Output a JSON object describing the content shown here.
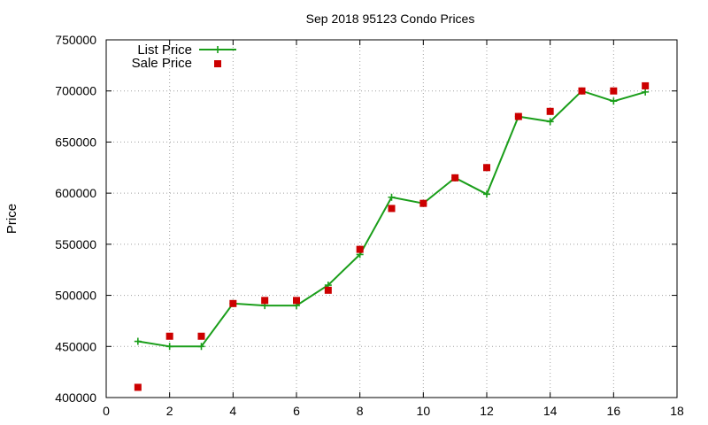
{
  "chart_data": {
    "type": "line",
    "title": "Sep 2018 95123 Condo Prices",
    "xlabel": "",
    "ylabel": "Price",
    "xlim": [
      0,
      18
    ],
    "ylim": [
      400000,
      750000
    ],
    "xticks": [
      0,
      2,
      4,
      6,
      8,
      10,
      12,
      14,
      16,
      18
    ],
    "yticks": [
      400000,
      450000,
      500000,
      550000,
      600000,
      650000,
      700000,
      750000
    ],
    "grid": true,
    "legend_position": "top-left",
    "series": [
      {
        "name": "List Price",
        "style": "line-with-plus-markers",
        "color": "#1a9e1a",
        "x": [
          1,
          2,
          3,
          4,
          5,
          6,
          7,
          8,
          9,
          10,
          11,
          12,
          13,
          14,
          15,
          16,
          17
        ],
        "values": [
          455000,
          450000,
          450000,
          492000,
          490000,
          490000,
          510000,
          540000,
          596000,
          590000,
          615000,
          599000,
          675000,
          670000,
          700000,
          690000,
          699000
        ]
      },
      {
        "name": "Sale Price",
        "style": "square-markers",
        "color": "#cc0000",
        "x": [
          1,
          2,
          3,
          4,
          5,
          6,
          7,
          8,
          9,
          10,
          11,
          12,
          13,
          14,
          15,
          16,
          17
        ],
        "values": [
          410000,
          460000,
          460000,
          492000,
          495000,
          495000,
          505000,
          545000,
          585000,
          590000,
          615000,
          625000,
          675000,
          680000,
          700000,
          700000,
          705000
        ]
      }
    ]
  }
}
